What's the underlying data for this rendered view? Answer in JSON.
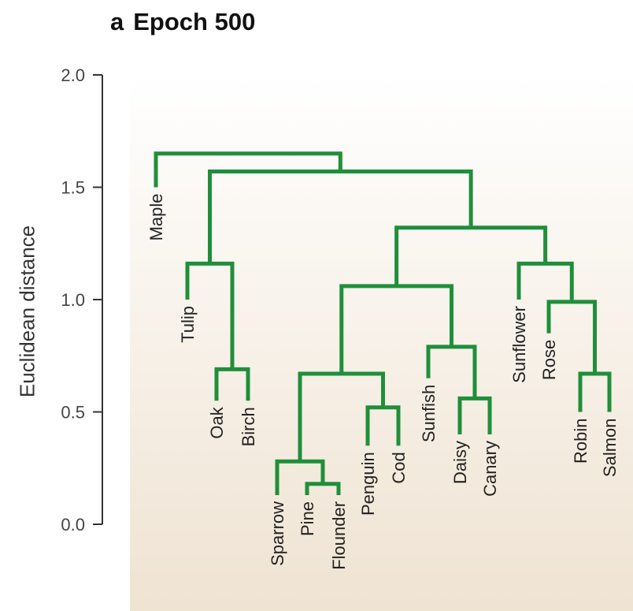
{
  "header": {
    "panel_letter": "a",
    "title": "Epoch 500"
  },
  "chart_data": {
    "type": "dendrogram",
    "title": "Epoch 500",
    "ylabel": "Euclidean distance",
    "ylim": [
      0,
      2
    ],
    "y_ticks": [
      {
        "value": 0,
        "label": "0.0"
      },
      {
        "value": 0.5,
        "label": "0.5"
      },
      {
        "value": 1.0,
        "label": "1.0"
      },
      {
        "value": 1.5,
        "label": "1.5"
      },
      {
        "value": 2.0,
        "label": "2.0"
      }
    ],
    "line_color": "#1f8f3a",
    "leaves": [
      {
        "name": "Maple",
        "height": 1.5
      },
      {
        "name": "Tulip",
        "height": 1.0
      },
      {
        "name": "Oak",
        "height": 0.55
      },
      {
        "name": "Birch",
        "height": 0.55
      },
      {
        "name": "Sparrow",
        "height": 0.13
      },
      {
        "name": "Pine",
        "height": 0.13
      },
      {
        "name": "Flounder",
        "height": 0.13
      },
      {
        "name": "Penguin",
        "height": 0.35
      },
      {
        "name": "Cod",
        "height": 0.35
      },
      {
        "name": "Sunfish",
        "height": 0.65
      },
      {
        "name": "Daisy",
        "height": 0.4
      },
      {
        "name": "Canary",
        "height": 0.4
      },
      {
        "name": "Sunflower",
        "height": 1.0
      },
      {
        "name": "Rose",
        "height": 0.85
      },
      {
        "name": "Robin",
        "height": 0.5
      },
      {
        "name": "Salmon",
        "height": 0.5
      }
    ],
    "merges": [
      {
        "a": 2,
        "b": 3,
        "height": 0.69
      },
      {
        "a": 1,
        "b": -1,
        "height": 1.16
      },
      {
        "a": 5,
        "b": 6,
        "height": 0.18
      },
      {
        "a": 4,
        "b": -3,
        "height": 0.28
      },
      {
        "a": 7,
        "b": 8,
        "height": 0.52
      },
      {
        "a": -4,
        "b": -5,
        "height": 0.67
      },
      {
        "a": 10,
        "b": 11,
        "height": 0.56
      },
      {
        "a": 9,
        "b": -7,
        "height": 0.79
      },
      {
        "a": -6,
        "b": -8,
        "height": 1.06
      },
      {
        "a": 14,
        "b": 15,
        "height": 0.67
      },
      {
        "a": 13,
        "b": -10,
        "height": 0.99
      },
      {
        "a": 12,
        "b": -11,
        "height": 1.16
      },
      {
        "a": -9,
        "b": -12,
        "height": 1.32
      },
      {
        "a": -2,
        "b": -13,
        "height": 1.57
      },
      {
        "a": 0,
        "b": -14,
        "height": 1.65
      }
    ]
  }
}
